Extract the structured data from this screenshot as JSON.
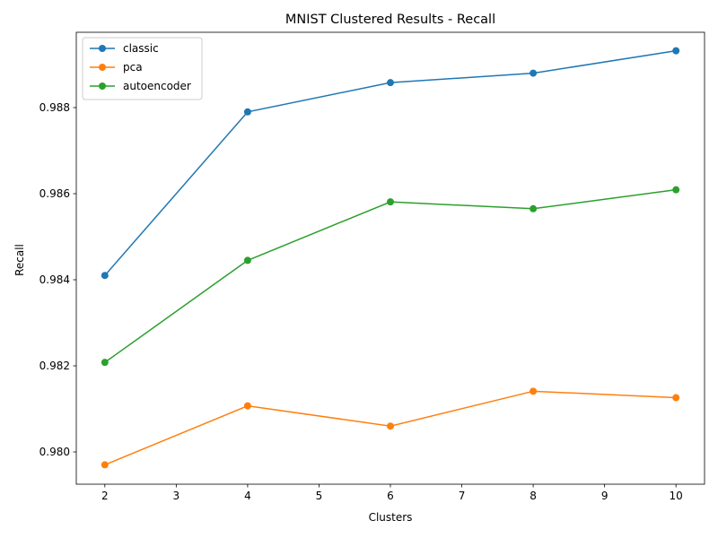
{
  "chart_data": {
    "type": "line",
    "title": "MNIST Clustered Results - Recall",
    "xlabel": "Clusters",
    "ylabel": "Recall",
    "x": [
      2,
      4,
      6,
      8,
      10
    ],
    "xlim": [
      1.6,
      10.4
    ],
    "ylim": [
      0.97925,
      0.98975
    ],
    "xticks": [
      2,
      3,
      4,
      5,
      6,
      7,
      8,
      9,
      10
    ],
    "yticks": [
      0.98,
      0.982,
      0.984,
      0.986,
      0.988
    ],
    "ytick_labels": [
      "0.980",
      "0.982",
      "0.984",
      "0.986",
      "0.988"
    ],
    "grid": false,
    "legend_position": "top-left",
    "series": [
      {
        "name": "classic",
        "color": "#1f77b4",
        "values": [
          0.9841,
          0.9879,
          0.98858,
          0.9888,
          0.98932
        ]
      },
      {
        "name": "pca",
        "color": "#ff7f0e",
        "values": [
          0.9797,
          0.98107,
          0.9806,
          0.98141,
          0.98126
        ]
      },
      {
        "name": "autoencoder",
        "color": "#2ca02c",
        "values": [
          0.98208,
          0.98445,
          0.98581,
          0.98565,
          0.98609
        ]
      }
    ]
  }
}
